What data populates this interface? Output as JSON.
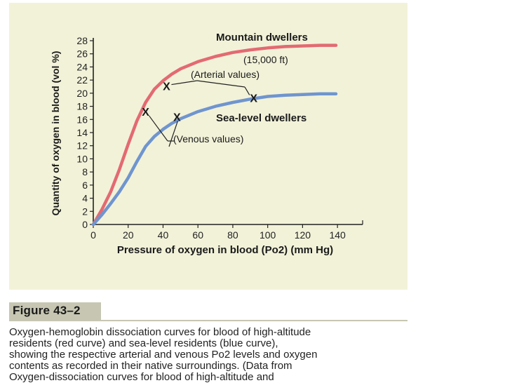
{
  "figure": {
    "label": "Figure 43–2",
    "caption_lines": [
      "Oxygen-hemoglobin dissociation curves for blood of high-altitude",
      "residents (red curve) and sea-level residents (blue curve),",
      "showing the respective arterial and venous Po2 levels and oxygen",
      "contents as recorded in their native surroundings. (Data from",
      "Oxygen-dissociation curves for blood of high-altitude and"
    ]
  },
  "chart_data": {
    "type": "line",
    "xlabel": "Pressure of oxygen in blood (Po2) (mm Hg)",
    "ylabel": "Quantity of oxygen in blood (vol %)",
    "xlim": [
      0,
      150
    ],
    "ylim": [
      0,
      28
    ],
    "xticks": [
      0,
      20,
      40,
      60,
      80,
      100,
      120,
      140
    ],
    "yticks": [
      0,
      2,
      4,
      6,
      8,
      10,
      12,
      14,
      16,
      18,
      20,
      22,
      24,
      26,
      28
    ],
    "grid": false,
    "series": [
      {
        "name": "Mountain dwellers",
        "color": "#e36a72",
        "x": [
          0,
          5,
          10,
          15,
          20,
          25,
          30,
          35,
          40,
          45,
          50,
          60,
          70,
          80,
          90,
          100,
          110,
          120,
          130,
          140,
          150
        ],
        "y": [
          0,
          2.3,
          5.0,
          8.4,
          12.2,
          15.8,
          18.6,
          20.6,
          21.9,
          22.9,
          23.7,
          24.8,
          25.6,
          26.2,
          26.6,
          26.9,
          27.1,
          27.2,
          27.3,
          27.3,
          27.3
        ]
      },
      {
        "name": "Sea-level dwellers",
        "color": "#6f95cf",
        "x": [
          0,
          5,
          10,
          15,
          20,
          25,
          30,
          35,
          40,
          45,
          50,
          60,
          70,
          80,
          90,
          100,
          110,
          120,
          130,
          140,
          150
        ],
        "y": [
          0,
          1.5,
          3.2,
          5.0,
          7.1,
          9.6,
          11.9,
          13.4,
          14.5,
          15.4,
          16.1,
          17.2,
          18.0,
          18.6,
          19.1,
          19.5,
          19.7,
          19.8,
          19.9,
          19.9,
          19.9
        ]
      }
    ],
    "markers": [
      {
        "symbol": "X",
        "x": 42,
        "y": 21.1
      },
      {
        "symbol": "X",
        "x": 30,
        "y": 17.2
      },
      {
        "symbol": "X",
        "x": 48,
        "y": 16.4
      },
      {
        "symbol": "X",
        "x": 92,
        "y": 19.3
      }
    ],
    "annotations": {
      "mountain_label": "Mountain dwellers",
      "altitude_label": "(15,000 ft)",
      "arterial_label": "(Arterial values)",
      "sea_label": "Sea-level dwellers",
      "venous_label": "(Venous values)"
    }
  }
}
